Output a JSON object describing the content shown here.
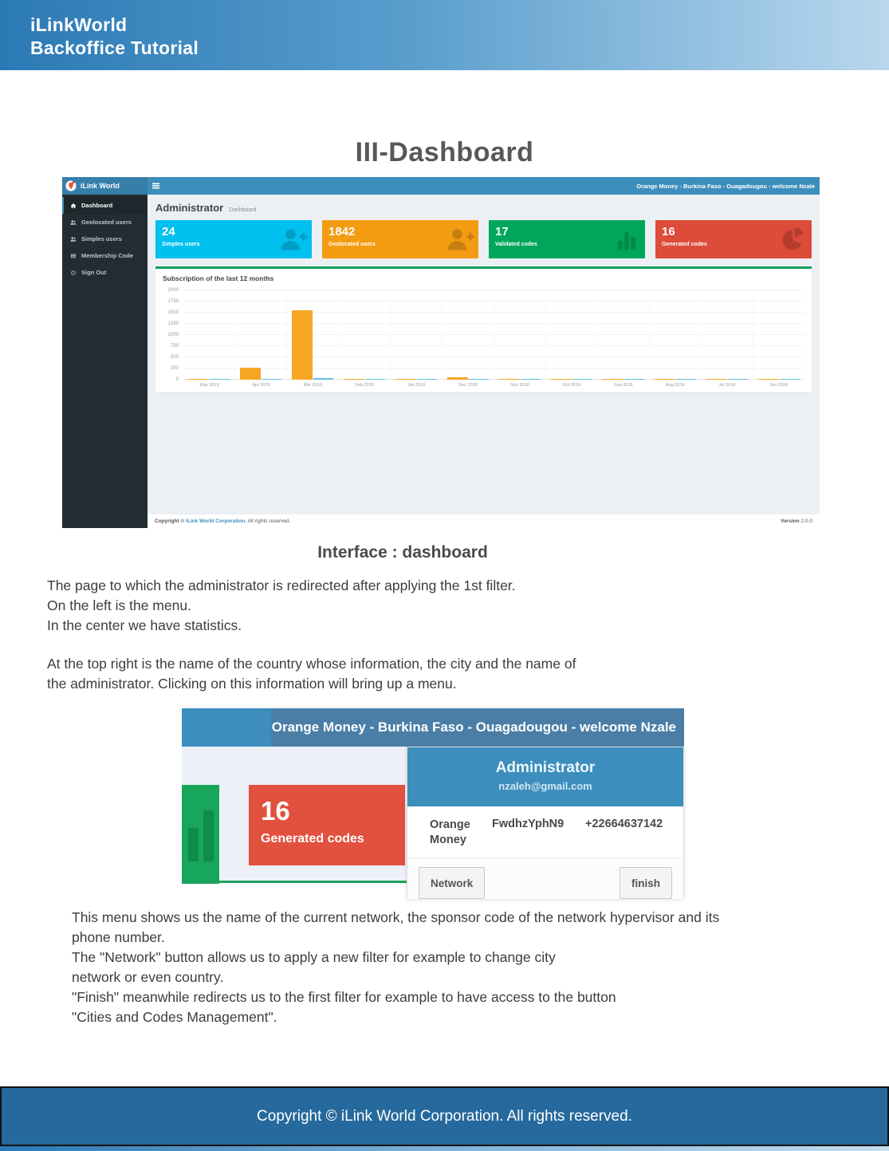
{
  "doc": {
    "header": {
      "line1": "iLinkWorld",
      "line2": "Backoffice Tutorial"
    },
    "title": "III-Dashboard",
    "subtitle": "Interface : dashboard",
    "para1": {
      "l1": "The page to which the administrator is redirected after applying the 1st filter.",
      "l2": "On the left is the menu.",
      "l3": "In the center we have statistics."
    },
    "para2": {
      "l1": "At the top right is the name of the country whose information, the city and the name of",
      "l2": " the administrator. Clicking on this information will bring up a menu."
    },
    "para3": {
      "l1": "This menu shows us the name of the current network, the sponsor code of the network hypervisor and its",
      "l2": "phone number.",
      "l3": "The \"Network\" button allows us to apply a new filter for example to change city",
      "l4": "network or even country.",
      "l5": "\"Finish\" meanwhile redirects us to the first filter for example to have access to the button",
      "l6": " \"Cities and Codes Management\"."
    },
    "footer": "Copyright © iLink World Corporation. All rights reserved."
  },
  "dashboard": {
    "brand": "iLink World",
    "topbar_right": "Orange Money - Burkina Faso - Ouagadougou - welcome Nzale",
    "sidebar": {
      "items": [
        {
          "label": "Dashboard",
          "icon": "home-icon"
        },
        {
          "label": "Geolocated users",
          "icon": "users-icon"
        },
        {
          "label": "Simples users",
          "icon": "users-icon"
        },
        {
          "label": "Membership Code",
          "icon": "table-icon"
        },
        {
          "label": "Sign Out",
          "icon": "power-icon"
        }
      ]
    },
    "page_title": "Administrator",
    "breadcrumb": "Dashboard",
    "cards": [
      {
        "value": "24",
        "label": "Simples users",
        "color": "#00c0ef",
        "icon": "user-plus-icon"
      },
      {
        "value": "1842",
        "label": "Geolocated users",
        "color": "#f39c12",
        "icon": "user-plus-icon"
      },
      {
        "value": "17",
        "label": "Validated codes",
        "color": "#00a65a",
        "icon": "bar-chart-icon"
      },
      {
        "value": "16",
        "label": "Generated codes",
        "color": "#dd4b39",
        "icon": "pie-chart-icon"
      }
    ],
    "footer": {
      "copyright_prefix": "Copyright © ",
      "copyright_link": "iLink World Corporation.",
      "copyright_suffix": " All rights reserved.",
      "version_label": "Version",
      "version": " 2.0.0"
    }
  },
  "chart_data": {
    "type": "bar",
    "title": "Subscription of the last 12 months",
    "categories": [
      "May 2019",
      "Apr 2019",
      "Mar 2019",
      "Feb 2019",
      "Jan 2019",
      "Dec 2018",
      "Nov 2018",
      "Oct 2018",
      "Sep 2018",
      "Aug 2018",
      "Jul 2018",
      "Jun 2018"
    ],
    "series": [
      {
        "name": "orange",
        "color": "#f6a623",
        "values": [
          10,
          270,
          1550,
          12,
          6,
          60,
          10,
          10,
          10,
          10,
          15,
          10
        ]
      },
      {
        "name": "blue",
        "color": "#64bfe0",
        "values": [
          18,
          18,
          28,
          20,
          12,
          18,
          14,
          18,
          18,
          18,
          18,
          18
        ]
      }
    ],
    "xlabel": "",
    "ylabel": "",
    "ylim": [
      0,
      2000
    ],
    "yticks": [
      0,
      250,
      500,
      750,
      1000,
      1250,
      1500,
      1750,
      2000
    ],
    "grid": true,
    "legend": "none"
  },
  "menu_shot": {
    "topbar_text": "Orange Money - Burkina Faso - Ouagadougou - welcome Nzale",
    "card": {
      "value": "16",
      "label": "Generated codes"
    },
    "dropdown": {
      "name": "Administrator",
      "email": "nzaleh@gmail.com",
      "network": "Orange Money",
      "sponsor_code": "FwdhzYphN9",
      "phone": "+22664637142",
      "network_button": "Network",
      "finish_button": "finish"
    }
  }
}
